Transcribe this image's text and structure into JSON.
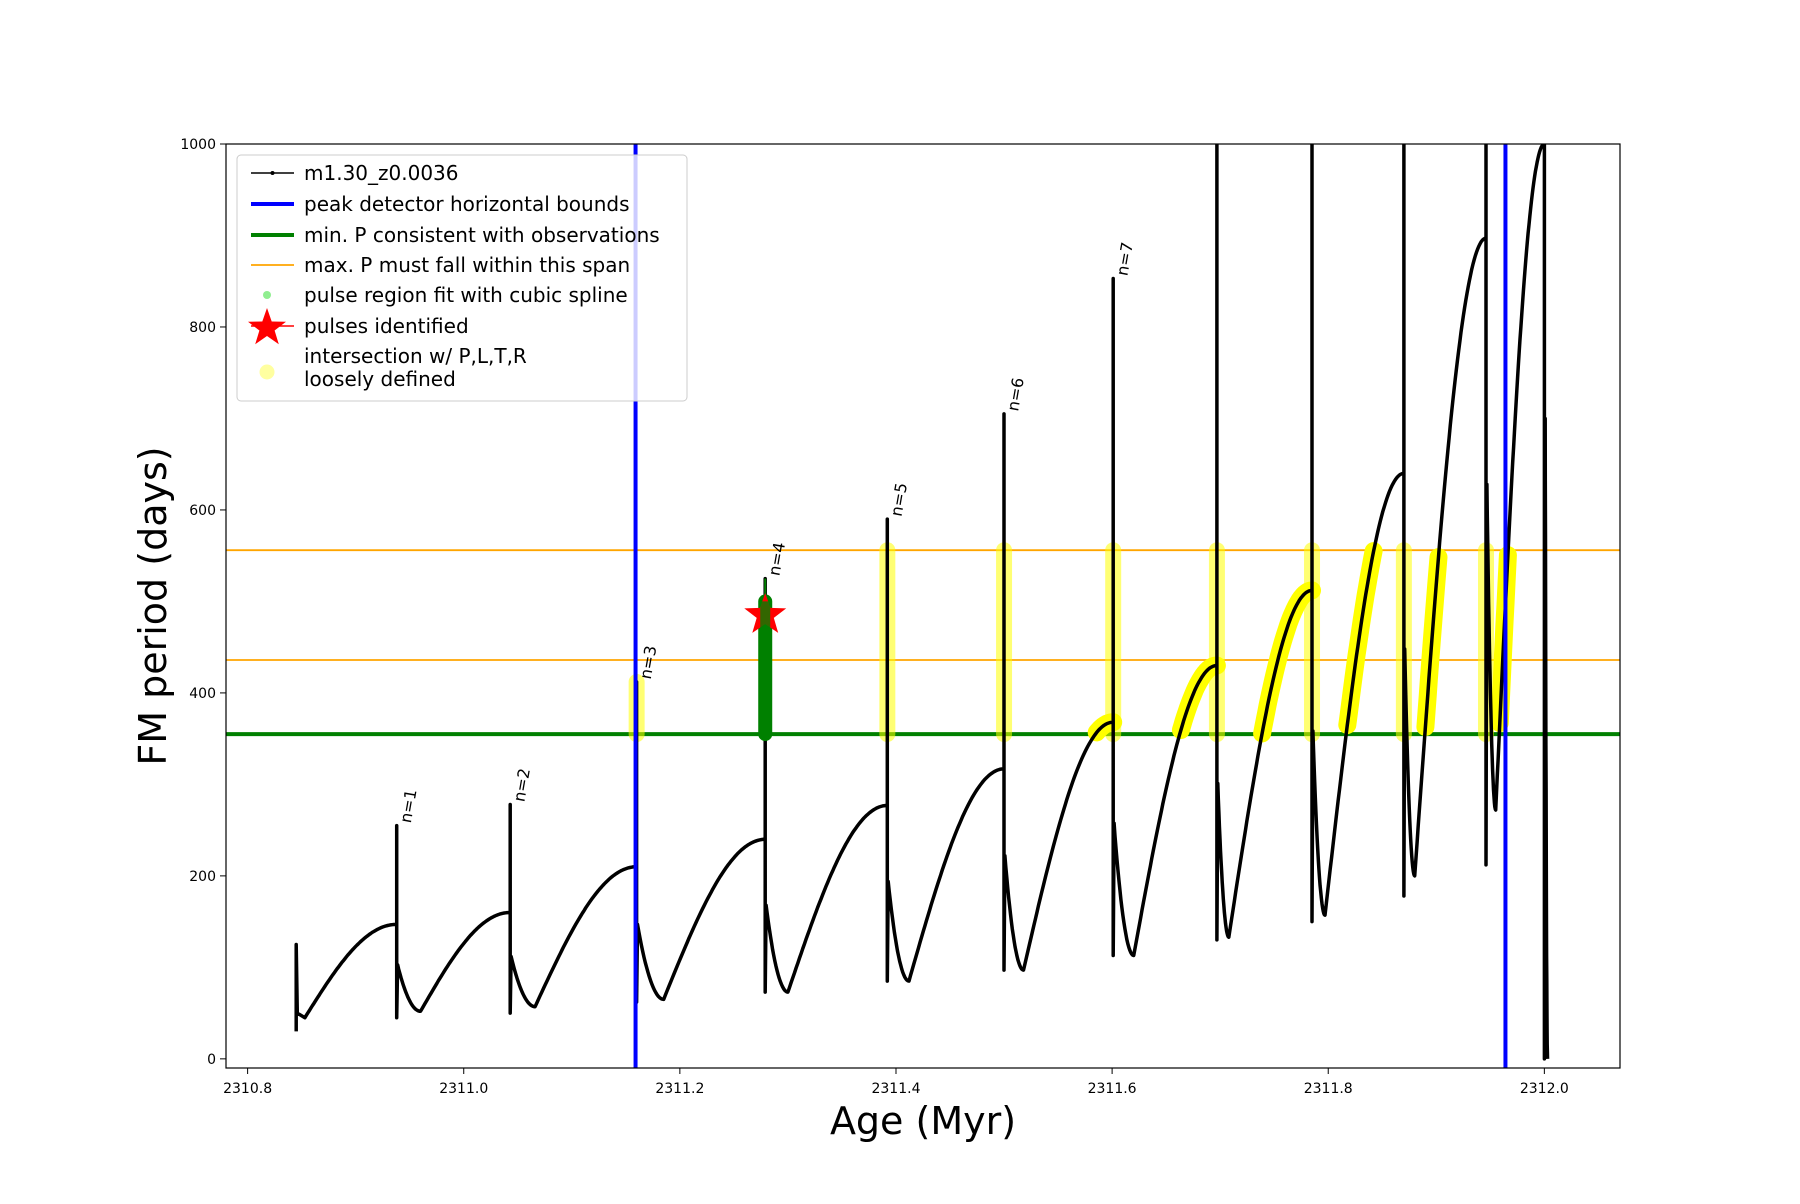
{
  "chart_data": {
    "type": "line",
    "title": "",
    "xlabel": "Age (Myr)",
    "ylabel": "FM period (days)",
    "xlim": [
      2310.78,
      2312.07
    ],
    "ylim": [
      -10,
      1000
    ],
    "xticks": [
      2310.8,
      2311.0,
      2311.2,
      2311.4,
      2311.6,
      2311.8,
      2312.0
    ],
    "xtick_labels": [
      "2310.8",
      "2311.0",
      "2311.2",
      "2311.4",
      "2311.6",
      "2311.8",
      "2312.0"
    ],
    "yticks": [
      0,
      200,
      400,
      600,
      800,
      1000
    ],
    "ytick_labels": [
      "0",
      "200",
      "400",
      "600",
      "800",
      "1000"
    ],
    "grid": false,
    "legend_position": "top-left",
    "legend": [
      {
        "label": "m1.30_z0.0036",
        "kind": "line-dot",
        "color": "#000000"
      },
      {
        "label": "peak detector horizontal bounds",
        "kind": "line-thick",
        "color": "#0000ff"
      },
      {
        "label": "min. P consistent with observations",
        "kind": "line-thick",
        "color": "#008000"
      },
      {
        "label": "max. P must fall within this span",
        "kind": "line-thin",
        "color": "#ffa500"
      },
      {
        "label": "pulse region fit with cubic spline",
        "kind": "dot",
        "color": "#90ee90"
      },
      {
        "label": "pulses identified",
        "kind": "star",
        "color": "#ff0000"
      },
      {
        "label": "intersection w/ P,L,T,R",
        "label2": "loosely defined",
        "kind": "circle",
        "color": "#ffffa0"
      }
    ],
    "vertical_bounds": [
      2311.159,
      2311.964
    ],
    "min_period": 355,
    "max_period_span": [
      436,
      556
    ],
    "track_start": {
      "age": 2310.845,
      "spike_min": 30,
      "spike_peak": 125,
      "min_value": 45,
      "min_age": 2310.853
    },
    "cycles": [
      {
        "n": "n=1",
        "pulse_age": 2310.938,
        "pre_max": 147,
        "spike_peak": 255,
        "spike_min": 45,
        "post_min": 52,
        "post_min_age": 2310.96
      },
      {
        "n": "n=2",
        "pulse_age": 2311.043,
        "pre_max": 160,
        "spike_peak": 278,
        "spike_min": 50,
        "post_min": 57,
        "post_min_age": 2311.066
      },
      {
        "n": "n=3",
        "pulse_age": 2311.16,
        "pre_max": 210,
        "spike_peak": 412,
        "spike_min": 62,
        "post_min": 65,
        "post_min_age": 2311.185
      },
      {
        "n": "n=4",
        "pulse_age": 2311.279,
        "pre_max": 240,
        "spike_peak": 525,
        "spike_min": 73,
        "post_min": 73,
        "post_min_age": 2311.3
      },
      {
        "n": "n=5",
        "pulse_age": 2311.392,
        "pre_max": 277,
        "spike_peak": 590,
        "spike_min": 85,
        "post_min": 85,
        "post_min_age": 2311.412
      },
      {
        "n": "n=6",
        "pulse_age": 2311.5,
        "pre_max": 317,
        "spike_peak": 705,
        "spike_min": 97,
        "post_min": 97,
        "post_min_age": 2311.518
      },
      {
        "n": "n=7",
        "pulse_age": 2311.601,
        "pre_max": 368,
        "spike_peak": 853,
        "spike_min": 113,
        "post_min": 113,
        "post_min_age": 2311.62
      },
      {
        "n": "",
        "pulse_age": 2311.697,
        "pre_max": 430,
        "spike_peak": 1000,
        "spike_min": 130,
        "post_min": 133,
        "post_min_age": 2311.708
      },
      {
        "n": "",
        "pulse_age": 2311.785,
        "pre_max": 512,
        "spike_peak": 1000,
        "spike_min": 150,
        "post_min": 157,
        "post_min_age": 2311.797
      },
      {
        "n": "",
        "pulse_age": 2311.87,
        "pre_max": 640,
        "spike_peak": 1000,
        "spike_min": 178,
        "post_min": 200,
        "post_min_age": 2311.88
      },
      {
        "n": "",
        "pulse_age": 2311.946,
        "pre_max": 897,
        "spike_peak": 1000,
        "spike_min": 212,
        "post_min": 272,
        "post_min_age": 2311.955
      },
      {
        "n": "",
        "pulse_age": 2312.0,
        "pre_max": 1000,
        "spike_peak": 1000,
        "spike_min": 0,
        "post_min": 0,
        "post_min_age": 2312.003
      }
    ],
    "pulse_identified": {
      "age": 2311.279,
      "period": 485
    },
    "spline_region": {
      "age": 2311.279,
      "from": 355,
      "to": 500
    },
    "yellow_spike_pulses": [
      3,
      5,
      6,
      7,
      8,
      9,
      10,
      11
    ],
    "yellow_rise_from_cycle": 7
  }
}
